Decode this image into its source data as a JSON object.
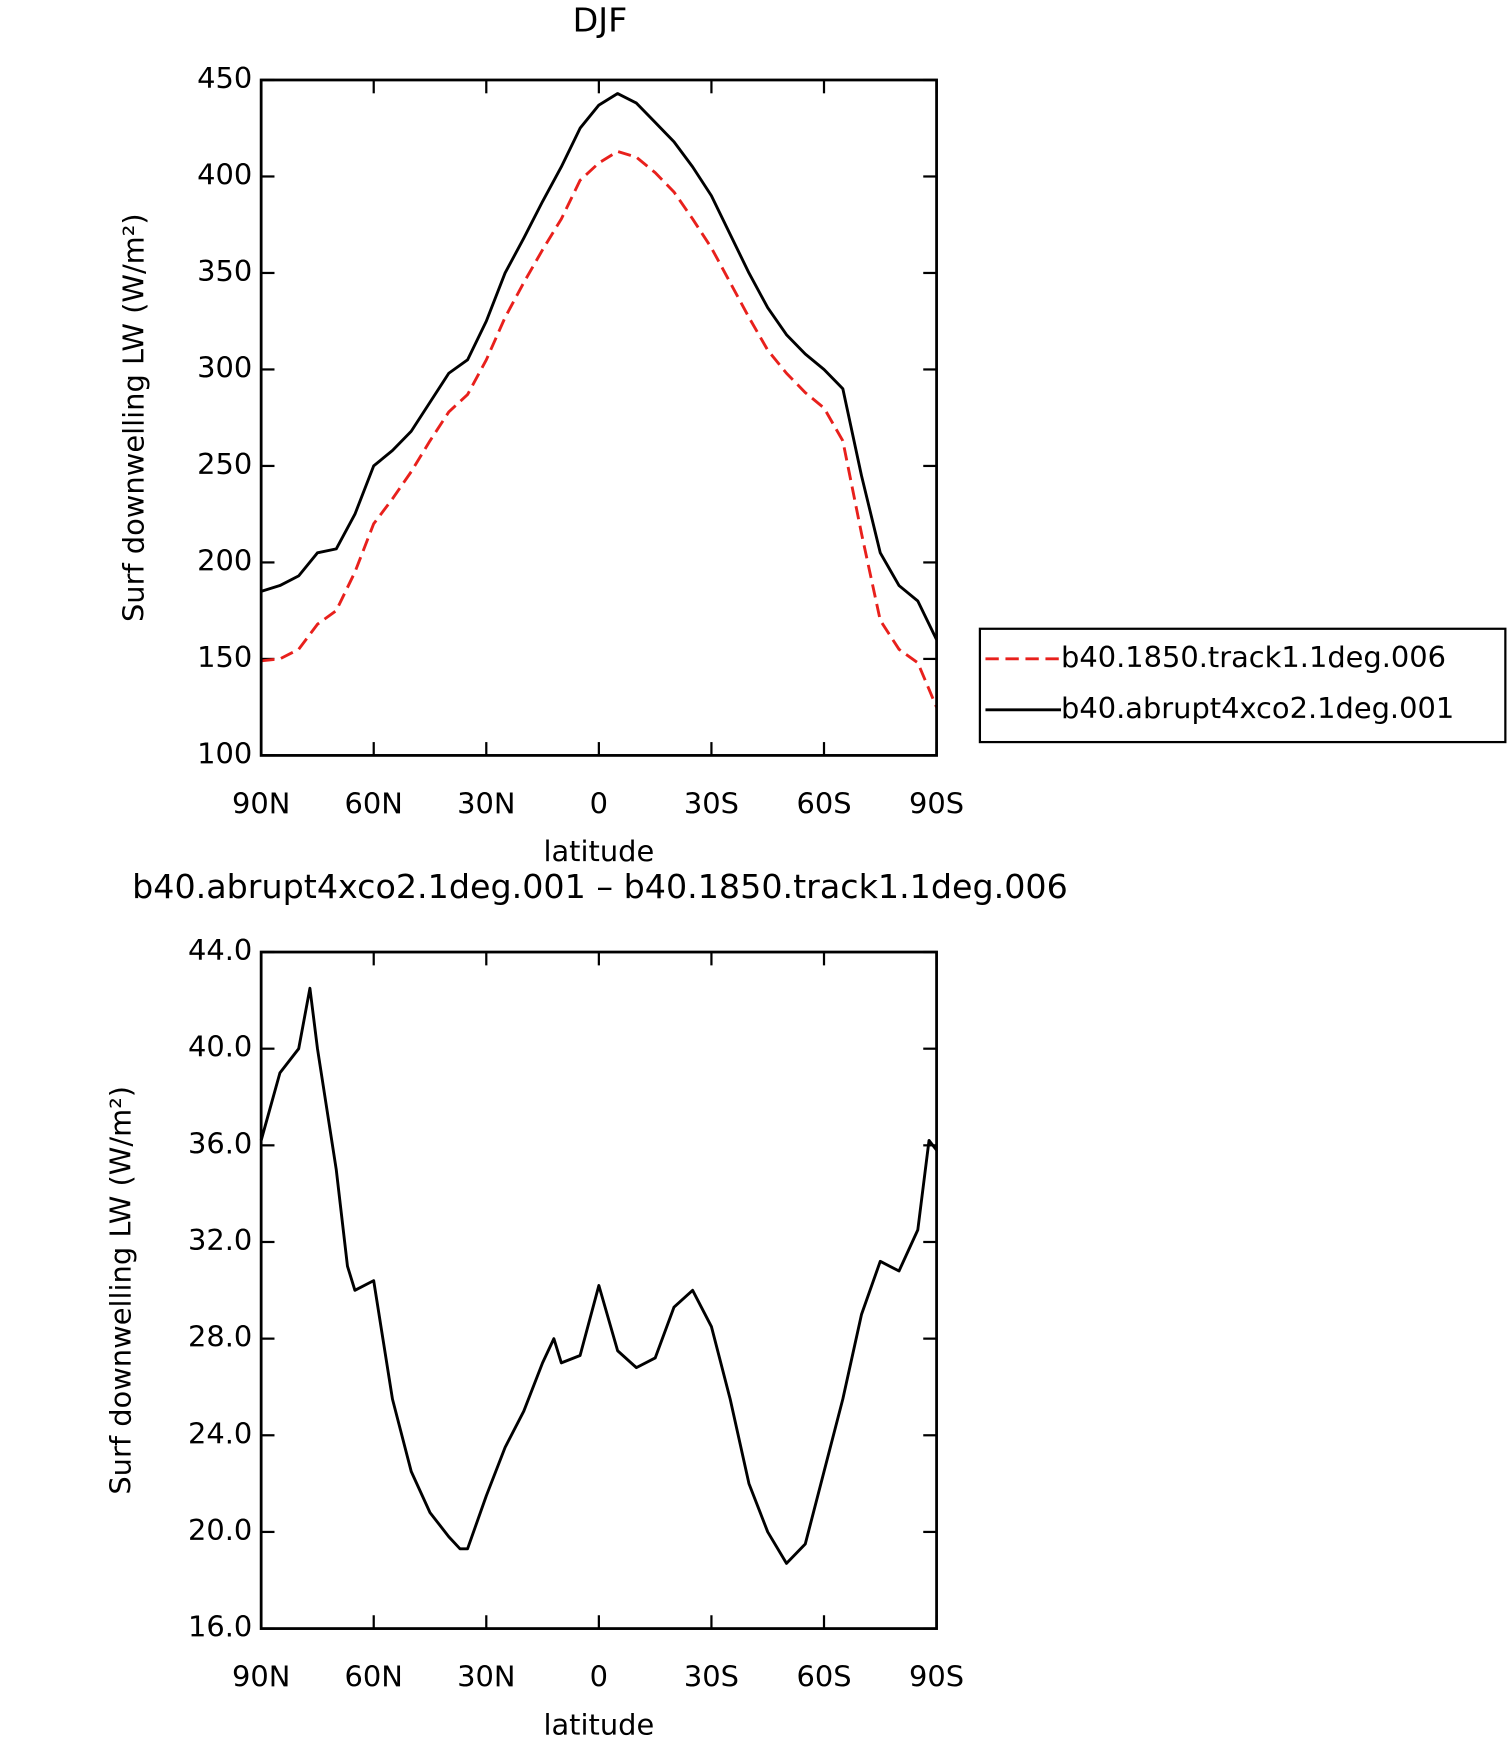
{
  "chart_data": [
    {
      "type": "line",
      "title": "DJF",
      "xlabel": "latitude",
      "ylabel": "Surf downwelling LW (W/m²)",
      "x": [
        90,
        85,
        80,
        75,
        70,
        65,
        60,
        55,
        50,
        45,
        40,
        35,
        30,
        25,
        20,
        15,
        10,
        5,
        0,
        -5,
        -10,
        -15,
        -20,
        -25,
        -30,
        -35,
        -40,
        -45,
        -50,
        -55,
        -60,
        -65,
        -70,
        -75,
        -80,
        -85,
        -90
      ],
      "xlim": [
        90,
        -90
      ],
      "xticks": [
        {
          "value": 90,
          "label": "90N"
        },
        {
          "value": 60,
          "label": "60N"
        },
        {
          "value": 30,
          "label": "30N"
        },
        0,
        {
          "value": -30,
          "label": "30S"
        },
        {
          "value": -60,
          "label": "60S"
        },
        {
          "value": -90,
          "label": "90S"
        }
      ],
      "ylim": [
        100,
        450
      ],
      "yticks": [
        100,
        150,
        200,
        250,
        300,
        350,
        400,
        450
      ],
      "legend": "outside-right",
      "series": [
        {
          "name": "b40.1850.track1.1deg.006",
          "color": "#e8201c",
          "linestyle": "dashed",
          "values": [
            149,
            150,
            155,
            168,
            175,
            195,
            220,
            233,
            247,
            263,
            278,
            287,
            305,
            327,
            345,
            362,
            378,
            398,
            407,
            413,
            410,
            402,
            392,
            378,
            363,
            345,
            327,
            310,
            298,
            288,
            280,
            263,
            215,
            170,
            155,
            148,
            125
          ]
        },
        {
          "name": "b40.abrupt4xco2.1deg.001",
          "color": "#000000",
          "linestyle": "solid",
          "values": [
            185,
            188,
            193,
            205,
            207,
            225,
            250,
            258,
            268,
            283,
            298,
            305,
            325,
            350,
            368,
            387,
            405,
            425,
            437,
            443,
            438,
            428,
            418,
            405,
            390,
            370,
            350,
            332,
            318,
            308,
            300,
            290,
            245,
            205,
            188,
            180,
            160
          ]
        }
      ]
    },
    {
      "type": "line",
      "title": "b40.abrupt4xco2.1deg.001 – b40.1850.track1.1deg.006",
      "xlabel": "latitude",
      "ylabel": "Surf downwelling LW (W/m²)",
      "x": [
        90,
        85,
        80,
        77,
        75,
        70,
        67,
        65,
        60,
        55,
        50,
        45,
        40,
        37,
        35,
        30,
        25,
        20,
        15,
        12,
        10,
        5,
        0,
        -5,
        -10,
        -15,
        -20,
        -25,
        -30,
        -35,
        -40,
        -45,
        -50,
        -55,
        -60,
        -65,
        -70,
        -75,
        -80,
        -85,
        -88,
        -90
      ],
      "values": [
        36.2,
        39,
        40,
        42.5,
        40,
        35,
        31,
        30,
        30.4,
        25.5,
        22.5,
        20.8,
        19.8,
        19.3,
        19.3,
        21.5,
        23.5,
        25,
        27,
        28,
        27,
        27.3,
        30.2,
        27.5,
        26.8,
        27.2,
        29.3,
        30,
        28.5,
        25.5,
        22,
        20,
        18.7,
        19.5,
        22.5,
        25.5,
        29,
        31.2,
        30.8,
        32.5,
        36.2,
        35.8
      ],
      "color": "#000000",
      "xlim": [
        90,
        -90
      ],
      "xticks": [
        {
          "value": 90,
          "label": "90N"
        },
        {
          "value": 60,
          "label": "60N"
        },
        {
          "value": 30,
          "label": "30N"
        },
        0,
        {
          "value": -30,
          "label": "30S"
        },
        {
          "value": -60,
          "label": "60S"
        },
        {
          "value": -90,
          "label": "90S"
        }
      ],
      "ylim": [
        16,
        44
      ],
      "yticks": [
        {
          "value": 16,
          "label": "16.0"
        },
        {
          "value": 20,
          "label": "20.0"
        },
        {
          "value": 24,
          "label": "24.0"
        },
        {
          "value": 28,
          "label": "28.0"
        },
        {
          "value": 32,
          "label": "32.0"
        },
        {
          "value": 36,
          "label": "36.0"
        },
        {
          "value": 40,
          "label": "40.0"
        },
        {
          "value": 44,
          "label": "44.0"
        }
      ]
    }
  ]
}
